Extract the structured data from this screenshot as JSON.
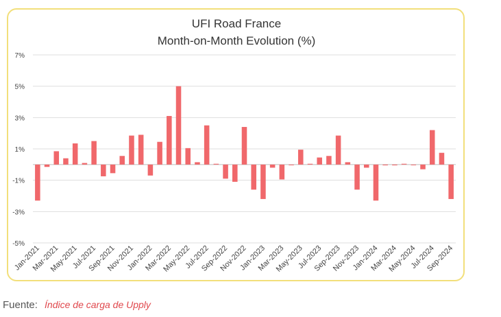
{
  "chart_data": {
    "type": "bar",
    "title": "UFI Road France",
    "subtitle": "Month-on-Month Evolution (%)",
    "xlabel": "",
    "ylabel": "",
    "ylim": [
      -5,
      7
    ],
    "yticks": [
      -5,
      -3,
      -1,
      1,
      3,
      5,
      7
    ],
    "ytick_labels": [
      "-5%",
      "-3%",
      "-1%",
      "1%",
      "3%",
      "5%",
      "7%"
    ],
    "grid": true,
    "bar_color": "#f0686b",
    "categories": [
      "Jan-2021",
      "Feb-2021",
      "Mar-2021",
      "Apr-2021",
      "May-2021",
      "Jun-2021",
      "Jul-2021",
      "Aug-2021",
      "Sep-2021",
      "Oct-2021",
      "Nov-2021",
      "Dec-2021",
      "Jan-2022",
      "Feb-2022",
      "Mar-2022",
      "Apr-2022",
      "May-2022",
      "Jun-2022",
      "Jul-2022",
      "Aug-2022",
      "Sep-2022",
      "Oct-2022",
      "Nov-2022",
      "Dec-2022",
      "Jan-2023",
      "Feb-2023",
      "Mar-2023",
      "Apr-2023",
      "May-2023",
      "Jun-2023",
      "Jul-2023",
      "Aug-2023",
      "Sep-2023",
      "Oct-2023",
      "Nov-2023",
      "Dec-2023",
      "Jan-2024",
      "Feb-2024",
      "Mar-2024",
      "Apr-2024",
      "May-2024",
      "Jun-2024",
      "Jul-2024",
      "Aug-2024",
      "Sep-2024"
    ],
    "xtick_labels": [
      "Jan-2021",
      "Mar-2021",
      "May-2021",
      "Jul-2021",
      "Sep-2021",
      "Nov-2021",
      "Jan-2022",
      "Mar-2022",
      "May-2022",
      "Jul-2022",
      "Sep-2022",
      "Nov-2022",
      "Jan-2023",
      "Mar-2023",
      "May-2023",
      "Jul-2023",
      "Sep-2023",
      "Nov-2023",
      "Jan-2024",
      "Mar-2024",
      "May-2024",
      "Jul-2024",
      "Sep-2024"
    ],
    "values": [
      -2.3,
      -0.15,
      0.85,
      0.4,
      1.35,
      0.1,
      1.5,
      -0.75,
      -0.55,
      0.55,
      1.85,
      1.9,
      -0.7,
      1.45,
      3.1,
      5.0,
      1.05,
      0.15,
      2.5,
      0.05,
      -0.9,
      -1.1,
      2.4,
      -1.6,
      -2.2,
      -0.2,
      -0.95,
      0.0,
      0.95,
      0.05,
      0.45,
      0.55,
      1.85,
      0.15,
      -1.6,
      -0.2,
      -2.3,
      -0.05,
      -0.05,
      0.05,
      0.0,
      -0.3,
      2.2,
      0.75,
      -2.2
    ]
  },
  "source": {
    "label": "Fuente:",
    "link_text": "Índice de carga de Upply"
  }
}
